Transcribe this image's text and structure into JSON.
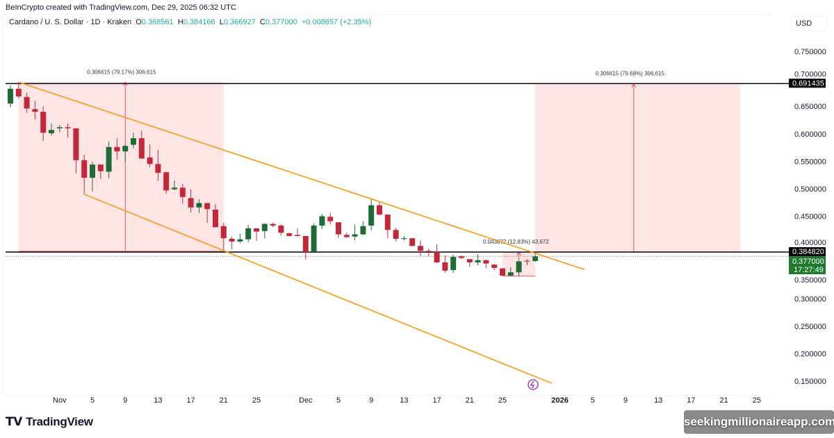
{
  "credit": "BeInCrypto created with TradingView.com, Dec 29, 2025 06:32 UTC",
  "legend": {
    "symbol": "Cardano / U. S. Dollar · 1D · Kraken",
    "o_label": "O",
    "o": "0.368561",
    "h_label": "H",
    "h": "0.384166",
    "l_label": "L",
    "l": "0.366927",
    "c_label": "C",
    "c": "0.377000",
    "change": "+0.008657 (+2.35%)"
  },
  "currency": "USD",
  "branding": {
    "tradingview": "TradingView",
    "watermark": "seekingmillionaireapp.com"
  },
  "colors": {
    "up": "#1e6b35",
    "down": "#c3283a",
    "channel": "#f59a16",
    "zone": "#fde0e2",
    "zone_line": "#e3506a",
    "last_price": "#1e7a2e",
    "alert_icon": "#9c27b0"
  },
  "chart_data": {
    "type": "candlestick",
    "ylim": [
      0.13,
      0.78
    ],
    "y_ticks": [
      "0.750000",
      "0.700000",
      "0.650000",
      "0.600000",
      "0.550000",
      "0.500000",
      "0.450000",
      "0.400000",
      "0.350000",
      "0.300000",
      "0.250000",
      "0.200000",
      "0.150000"
    ],
    "x_ticks": [
      {
        "label": "Nov",
        "date": "2025-11-01"
      },
      {
        "label": "5",
        "date": "2025-11-05"
      },
      {
        "label": "9",
        "date": "2025-11-09"
      },
      {
        "label": "13",
        "date": "2025-11-13"
      },
      {
        "label": "17",
        "date": "2025-11-17"
      },
      {
        "label": "21",
        "date": "2025-11-21"
      },
      {
        "label": "25",
        "date": "2025-11-25"
      },
      {
        "label": "Dec",
        "date": "2025-12-01"
      },
      {
        "label": "5",
        "date": "2025-12-05"
      },
      {
        "label": "9",
        "date": "2025-12-09"
      },
      {
        "label": "13",
        "date": "2025-12-13"
      },
      {
        "label": "17",
        "date": "2025-12-17"
      },
      {
        "label": "21",
        "date": "2025-12-21"
      },
      {
        "label": "25",
        "date": "2025-12-25"
      },
      {
        "label": "2026",
        "date": "2026-01-01"
      },
      {
        "label": "5",
        "date": "2026-01-05"
      },
      {
        "label": "9",
        "date": "2026-01-09"
      },
      {
        "label": "13",
        "date": "2026-01-13"
      },
      {
        "label": "17",
        "date": "2026-01-17"
      },
      {
        "label": "21",
        "date": "2026-01-21"
      },
      {
        "label": "25",
        "date": "2026-01-25"
      }
    ],
    "candles_columns": [
      "date",
      "open",
      "high",
      "low",
      "close"
    ],
    "candles": [
      [
        "2025-10-26",
        0.655,
        0.688,
        0.648,
        0.682
      ],
      [
        "2025-10-27",
        0.682,
        0.694,
        0.664,
        0.668
      ],
      [
        "2025-10-28",
        0.667,
        0.675,
        0.638,
        0.646
      ],
      [
        "2025-10-29",
        0.645,
        0.66,
        0.626,
        0.64
      ],
      [
        "2025-10-30",
        0.64,
        0.65,
        0.587,
        0.602
      ],
      [
        "2025-10-31",
        0.601,
        0.619,
        0.597,
        0.607
      ],
      [
        "2025-11-01",
        0.61,
        0.616,
        0.603,
        0.612
      ],
      [
        "2025-11-02",
        0.612,
        0.619,
        0.593,
        0.61
      ],
      [
        "2025-11-03",
        0.61,
        0.61,
        0.528,
        0.552
      ],
      [
        "2025-11-04",
        0.552,
        0.562,
        0.49,
        0.52
      ],
      [
        "2025-11-05",
        0.52,
        0.549,
        0.495,
        0.544
      ],
      [
        "2025-11-06",
        0.544,
        0.544,
        0.518,
        0.532
      ],
      [
        "2025-11-07",
        0.531,
        0.586,
        0.519,
        0.576
      ],
      [
        "2025-11-08",
        0.576,
        0.592,
        0.553,
        0.568
      ],
      [
        "2025-11-09",
        0.568,
        0.582,
        0.548,
        0.578
      ],
      [
        "2025-11-10",
        0.58,
        0.602,
        0.574,
        0.592
      ],
      [
        "2025-11-11",
        0.592,
        0.606,
        0.555,
        0.555
      ],
      [
        "2025-11-12",
        0.557,
        0.581,
        0.539,
        0.545
      ],
      [
        "2025-11-13",
        0.545,
        0.571,
        0.514,
        0.529
      ],
      [
        "2025-11-14",
        0.53,
        0.531,
        0.491,
        0.497
      ],
      [
        "2025-11-15",
        0.499,
        0.515,
        0.497,
        0.502
      ],
      [
        "2025-11-16",
        0.502,
        0.509,
        0.473,
        0.485
      ],
      [
        "2025-11-17",
        0.483,
        0.499,
        0.457,
        0.466
      ],
      [
        "2025-11-18",
        0.466,
        0.481,
        0.456,
        0.474
      ],
      [
        "2025-11-19",
        0.474,
        0.474,
        0.438,
        0.463
      ],
      [
        "2025-11-20",
        0.462,
        0.472,
        0.43,
        0.43
      ],
      [
        "2025-11-21",
        0.432,
        0.438,
        0.389,
        0.41
      ],
      [
        "2025-11-22",
        0.409,
        0.413,
        0.39,
        0.404
      ],
      [
        "2025-11-23",
        0.404,
        0.418,
        0.401,
        0.408
      ],
      [
        "2025-11-24",
        0.408,
        0.434,
        0.403,
        0.428
      ],
      [
        "2025-11-25",
        0.428,
        0.428,
        0.405,
        0.422
      ],
      [
        "2025-11-26",
        0.423,
        0.437,
        0.41,
        0.436
      ],
      [
        "2025-11-27",
        0.436,
        0.438,
        0.43,
        0.433
      ],
      [
        "2025-11-28",
        0.433,
        0.435,
        0.415,
        0.42
      ],
      [
        "2025-11-29",
        0.419,
        0.42,
        0.413,
        0.414
      ],
      [
        "2025-11-30",
        0.416,
        0.428,
        0.413,
        0.414
      ],
      [
        "2025-12-01",
        0.414,
        0.414,
        0.371,
        0.385
      ],
      [
        "2025-12-02",
        0.385,
        0.437,
        0.385,
        0.433
      ],
      [
        "2025-12-03",
        0.433,
        0.454,
        0.427,
        0.45
      ],
      [
        "2025-12-04",
        0.449,
        0.456,
        0.435,
        0.441
      ],
      [
        "2025-12-05",
        0.439,
        0.439,
        0.411,
        0.417
      ],
      [
        "2025-12-06",
        0.416,
        0.42,
        0.411,
        0.412
      ],
      [
        "2025-12-07",
        0.413,
        0.435,
        0.406,
        0.417
      ],
      [
        "2025-12-08",
        0.417,
        0.441,
        0.416,
        0.432
      ],
      [
        "2025-12-09",
        0.433,
        0.481,
        0.424,
        0.47
      ],
      [
        "2025-12-10",
        0.47,
        0.475,
        0.452,
        0.453
      ],
      [
        "2025-12-11",
        0.453,
        0.453,
        0.41,
        0.425
      ],
      [
        "2025-12-12",
        0.425,
        0.429,
        0.404,
        0.409
      ],
      [
        "2025-12-13",
        0.409,
        0.414,
        0.406,
        0.41
      ],
      [
        "2025-12-14",
        0.41,
        0.41,
        0.395,
        0.396
      ],
      [
        "2025-12-15",
        0.396,
        0.406,
        0.377,
        0.387
      ],
      [
        "2025-12-16",
        0.387,
        0.391,
        0.377,
        0.385
      ],
      [
        "2025-12-17",
        0.385,
        0.399,
        0.365,
        0.366
      ],
      [
        "2025-12-18",
        0.366,
        0.379,
        0.347,
        0.351
      ],
      [
        "2025-12-19",
        0.352,
        0.38,
        0.347,
        0.376
      ],
      [
        "2025-12-20",
        0.377,
        0.379,
        0.372,
        0.374
      ],
      [
        "2025-12-21",
        0.372,
        0.372,
        0.358,
        0.366
      ],
      [
        "2025-12-22",
        0.366,
        0.381,
        0.361,
        0.37
      ],
      [
        "2025-12-23",
        0.37,
        0.371,
        0.356,
        0.364
      ],
      [
        "2025-12-24",
        0.362,
        0.363,
        0.352,
        0.356
      ],
      [
        "2025-12-25",
        0.355,
        0.356,
        0.341,
        0.342
      ],
      [
        "2025-12-26",
        0.342,
        0.357,
        0.341,
        0.348
      ],
      [
        "2025-12-27",
        0.348,
        0.368,
        0.341,
        0.368
      ],
      [
        "2025-12-28",
        0.369,
        0.372,
        0.361,
        0.368
      ],
      [
        "2025-12-29",
        0.368561,
        0.384166,
        0.366927,
        0.377
      ]
    ],
    "horizontal_levels": [
      {
        "price": 0.691435,
        "label": "0.691435"
      },
      {
        "price": 0.38482,
        "label": "0.384820"
      }
    ],
    "last_price": {
      "price": 0.377,
      "label": "0.377000",
      "countdown": "17:27:49"
    },
    "channel": {
      "upper": [
        [
          "2025-10-27",
          0.694
        ],
        [
          "2026-01-04",
          0.353
        ]
      ],
      "lower": [
        [
          "2025-11-04",
          0.49
        ],
        [
          "2025-12-31",
          0.146
        ]
      ]
    },
    "measure_zones": [
      {
        "from": "2025-10-27",
        "to": "2025-11-21",
        "top": 0.694,
        "bottom": 0.386,
        "arrow_date": "2025-11-09",
        "label": "0.306615 (79.17%) 306,615"
      },
      {
        "from": "2025-12-29",
        "to": "2026-01-23",
        "top": 0.691,
        "bottom": 0.385,
        "arrow_date": "2026-01-10",
        "label": "0.306615 (79.68%) 306,615"
      },
      {
        "from": "2025-12-25",
        "to": "2025-12-29",
        "top": 0.385,
        "bottom": 0.341,
        "arrow_date": "2025-12-27",
        "label": "0.043672 (12.83%) 43,672"
      }
    ]
  }
}
